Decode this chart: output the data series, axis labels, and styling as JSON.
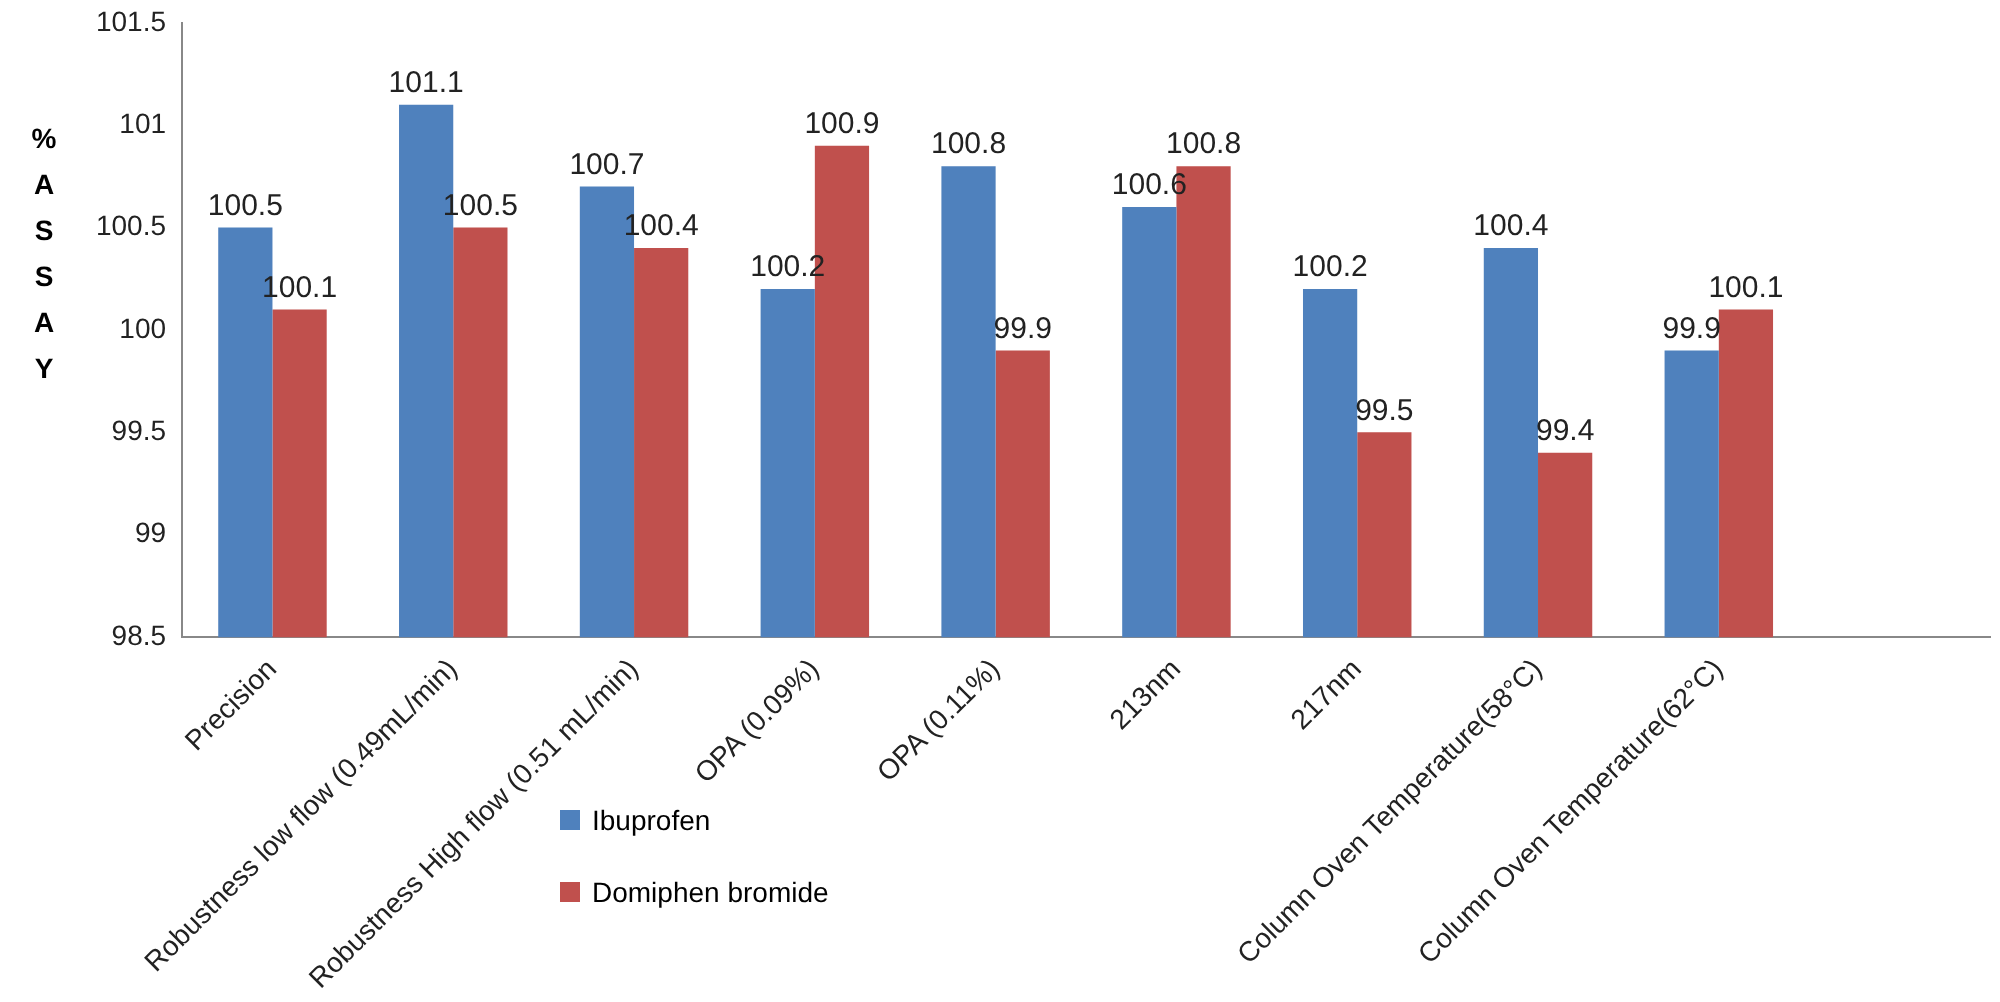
{
  "chart_data": {
    "type": "bar",
    "ylabel": "% ASSAY",
    "categories": [
      "Precision",
      "Robustness low flow (0.49mL/min)",
      "Robustness High flow (0.51 mL/min)",
      "OPA (0.09%)",
      "OPA (0.11%)",
      "213nm",
      "217nm",
      "Column Oven Temperature(58°C)",
      "Column Oven Temperature(62°C)",
      null
    ],
    "series": [
      {
        "name": "Ibuprofen",
        "color": "#4f81bd",
        "values": [
          100.5,
          101.1,
          100.7,
          100.2,
          100.8,
          100.6,
          100.2,
          100.4,
          99.9,
          null
        ]
      },
      {
        "name": "Domiphen bromide",
        "color": "#c0504d",
        "values": [
          100.1,
          100.5,
          100.4,
          100.9,
          99.9,
          100.8,
          99.5,
          99.4,
          100.1,
          null
        ]
      }
    ],
    "ylim": [
      98.5,
      101.5
    ],
    "yticks": [
      98.5,
      99,
      99.5,
      100,
      100.5,
      101,
      101.5
    ],
    "grid": false,
    "legend": "bottom",
    "data_labels": true
  }
}
